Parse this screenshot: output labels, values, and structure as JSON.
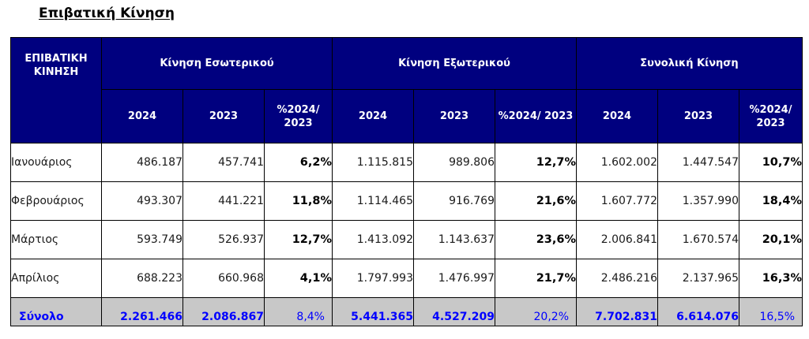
{
  "title": "Επιβατική Κίνηση",
  "header": {
    "corner": "ΕΠΙΒΑΤΙΚΗ ΚΙΝΗΣΗ",
    "groups": [
      "Κίνηση Εσωτερικού",
      "Κίνηση Εξωτερικού",
      "Συνολική Κίνηση"
    ],
    "col_2024": "2024",
    "col_2023": "2023",
    "col_pct": "%2024/ 2023"
  },
  "rows": [
    {
      "month": "Ιανουάριος",
      "domestic": {
        "y2024": "486.187",
        "y2023": "457.741",
        "pct": "6,2%"
      },
      "international": {
        "y2024": "1.115.815",
        "y2023": "989.806",
        "pct": "12,7%"
      },
      "total": {
        "y2024": "1.602.002",
        "y2023": "1.447.547",
        "pct": "10,7%"
      }
    },
    {
      "month": "Φεβρουάριος",
      "domestic": {
        "y2024": "493.307",
        "y2023": "441.221",
        "pct": "11,8%"
      },
      "international": {
        "y2024": "1.114.465",
        "y2023": "916.769",
        "pct": "21,6%"
      },
      "total": {
        "y2024": "1.607.772",
        "y2023": "1.357.990",
        "pct": "18,4%"
      }
    },
    {
      "month": "Μάρτιος",
      "domestic": {
        "y2024": "593.749",
        "y2023": "526.937",
        "pct": "12,7%"
      },
      "international": {
        "y2024": "1.413.092",
        "y2023": "1.143.637",
        "pct": "23,6%"
      },
      "total": {
        "y2024": "2.006.841",
        "y2023": "1.670.574",
        "pct": "20,1%"
      }
    },
    {
      "month": "Απρίλιος",
      "domestic": {
        "y2024": "688.223",
        "y2023": "660.968",
        "pct": "4,1%"
      },
      "international": {
        "y2024": "1.797.993",
        "y2023": "1.476.997",
        "pct": "21,7%"
      },
      "total": {
        "y2024": "2.486.216",
        "y2023": "2.137.965",
        "pct": "16,3%"
      }
    }
  ],
  "totals": {
    "label": "Σύνολο",
    "domestic": {
      "y2024": "2.261.466",
      "y2023": "2.086.867",
      "pct": "8,4%"
    },
    "international": {
      "y2024": "5.441.365",
      "y2023": "4.527.209",
      "pct": "20,2%"
    },
    "total": {
      "y2024": "7.702.831",
      "y2023": "6.614.076",
      "pct": "16,5%"
    }
  },
  "colors": {
    "header_bg": "#00007f",
    "header_text": "#ffffff",
    "total_bg": "#c8c8c8",
    "total_text": "#0000ff"
  }
}
